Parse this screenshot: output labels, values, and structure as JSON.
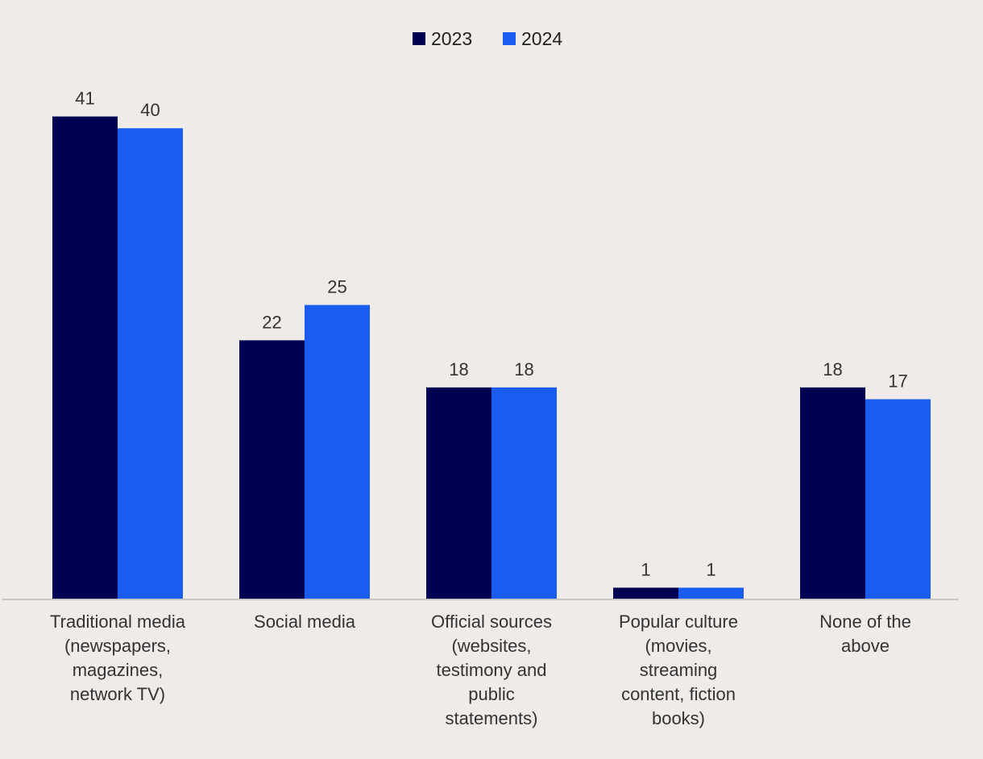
{
  "chart_data": {
    "type": "bar",
    "title": "",
    "xlabel": "",
    "ylabel": "",
    "ylim": [
      0,
      41
    ],
    "grid": false,
    "legend_position": "top-center",
    "categories": [
      [
        "Traditional media",
        "(newspapers,",
        "magazines,",
        "network TV)"
      ],
      [
        "Social media"
      ],
      [
        "Official sources",
        "(websites,",
        "testimony and",
        "public",
        "statements)"
      ],
      [
        "Popular culture",
        "(movies,",
        "streaming",
        "content, fiction",
        "books)"
      ],
      [
        "None of the",
        "above"
      ]
    ],
    "series": [
      {
        "name": "2023",
        "color": "#000050",
        "values": [
          41,
          22,
          18,
          1,
          18
        ]
      },
      {
        "name": "2024",
        "color": "#1a5cf0",
        "values": [
          40,
          25,
          18,
          1,
          17
        ]
      }
    ],
    "data_labels": true
  }
}
